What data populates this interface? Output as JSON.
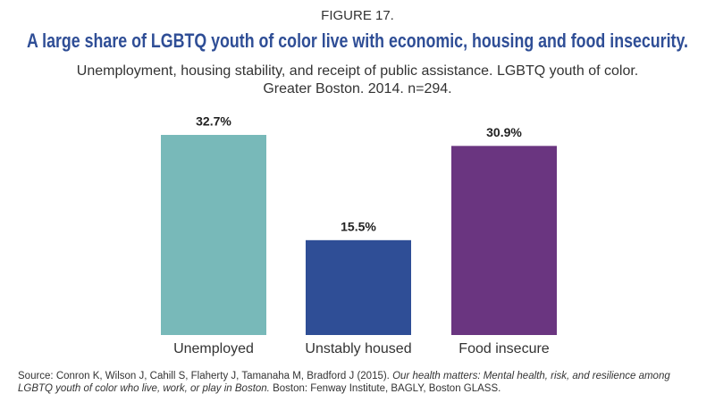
{
  "chart_data": {
    "type": "bar",
    "figure_label": "FIGURE 17.",
    "title": "A large share of LGBTQ youth of color live with economic, housing and food insecurity.",
    "subtitle": "Unemployment, housing stability, and receipt of public assistance. LGBTQ youth of color. Greater Boston. 2014. n=294.",
    "categories": [
      "Unemployed",
      "Unstably housed",
      "Food insecure"
    ],
    "values": [
      32.7,
      15.5,
      30.9
    ],
    "value_labels": [
      "32.7%",
      "15.5%",
      "30.9%"
    ],
    "colors": [
      "#78b9b9",
      "#2f4e96",
      "#6a3580"
    ],
    "source": {
      "prefix": "Source: Conron K, Wilson J, Cahill S, Flaherty J, Tamanaha M, Bradford J (2015). ",
      "work": "Our health matters: Mental health, risk, and resilience among LGBTQ youth of color who live, work, or play in Boston.",
      "suffix": " Boston: Fenway Institute, BAGLY, Boston GLASS."
    }
  }
}
